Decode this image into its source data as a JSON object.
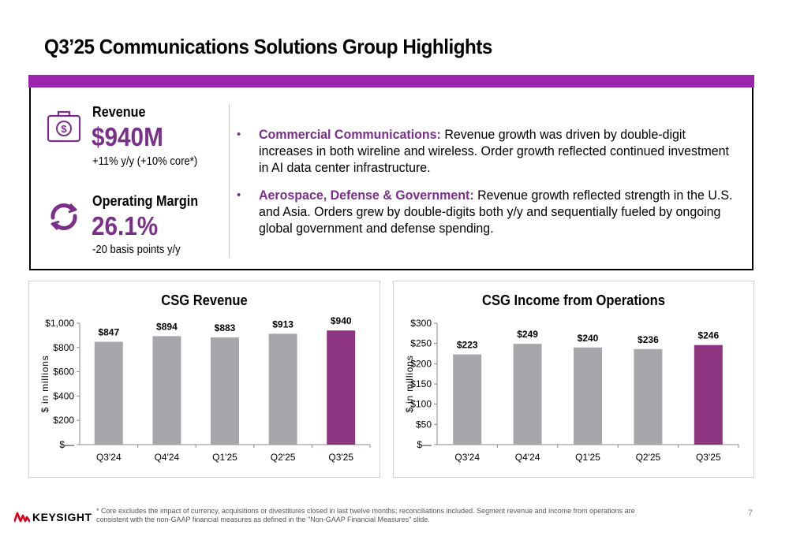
{
  "title": "Q3’25 Communications Solutions Group Highlights",
  "colors": {
    "accent": "#9b24ae",
    "brand_purple": "#7a2f8a",
    "bar_gray": "#a7a6aa",
    "bar_highlight": "#8e3582",
    "logo_red": "#e1001a"
  },
  "kpis": {
    "revenue": {
      "icon": "money-bag-icon",
      "label": "Revenue",
      "value": "$940M",
      "sub": "+11% y/y (+10% core*)"
    },
    "margin": {
      "icon": "refresh-cycle-icon",
      "label": "Operating Margin",
      "value": "26.1%",
      "sub": "-20 basis points y/y"
    }
  },
  "bullets": [
    {
      "lead": "Commercial Communications:",
      "text": "  Revenue growth was driven by double-digit increases in both wireline and wireless. Order growth reflected continued investment in AI data center infrastructure."
    },
    {
      "lead": "Aerospace, Defense & Government:",
      "text": " Revenue growth reflected strength in the U.S. and Asia. Orders grew by double-digits both y/y and sequentially fueled by ongoing global government and defense spending."
    }
  ],
  "chart_data": [
    {
      "type": "bar",
      "title": "CSG Revenue",
      "ylabel": "$ in millions",
      "categories": [
        "Q3'24",
        "Q4'24",
        "Q1'25",
        "Q2'25",
        "Q3'25"
      ],
      "values": [
        847,
        894,
        883,
        913,
        940
      ],
      "data_labels": [
        "$847",
        "$894",
        "$883",
        "$913",
        "$940"
      ],
      "highlight_index": 4,
      "ylim": [
        0,
        1000
      ],
      "yticks": [
        0,
        200,
        400,
        600,
        800,
        1000
      ],
      "ytick_labels": [
        "$—",
        "$200",
        "$400",
        "$600",
        "$800",
        "$1,000"
      ],
      "grid": false,
      "legend": false
    },
    {
      "type": "bar",
      "title": "CSG Income from Operations",
      "ylabel": "$ in millions",
      "categories": [
        "Q3'24",
        "Q4'24",
        "Q1'25",
        "Q2'25",
        "Q3'25"
      ],
      "values": [
        223,
        249,
        240,
        236,
        246
      ],
      "data_labels": [
        "$223",
        "$249",
        "$240",
        "$236",
        "$246"
      ],
      "highlight_index": 4,
      "ylim": [
        0,
        300
      ],
      "yticks": [
        0,
        50,
        100,
        150,
        200,
        250,
        300
      ],
      "ytick_labels": [
        "$—",
        "$50",
        "$100",
        "$150",
        "$200",
        "$250",
        "$300"
      ],
      "grid": false,
      "legend": false
    }
  ],
  "footer": {
    "logo_text": "KEYSIGHT",
    "logo_icon": "keysight-wave-icon",
    "footnote": "* Core excludes the impact of currency, acquisitions or divestitures closed in last twelve months; reconciliations included.  Segment revenue and income from operations are consistent with the non-GAAP financial measures as defined in the \"Non-GAAP Financial Measures\" slide.",
    "page_number": "7"
  }
}
